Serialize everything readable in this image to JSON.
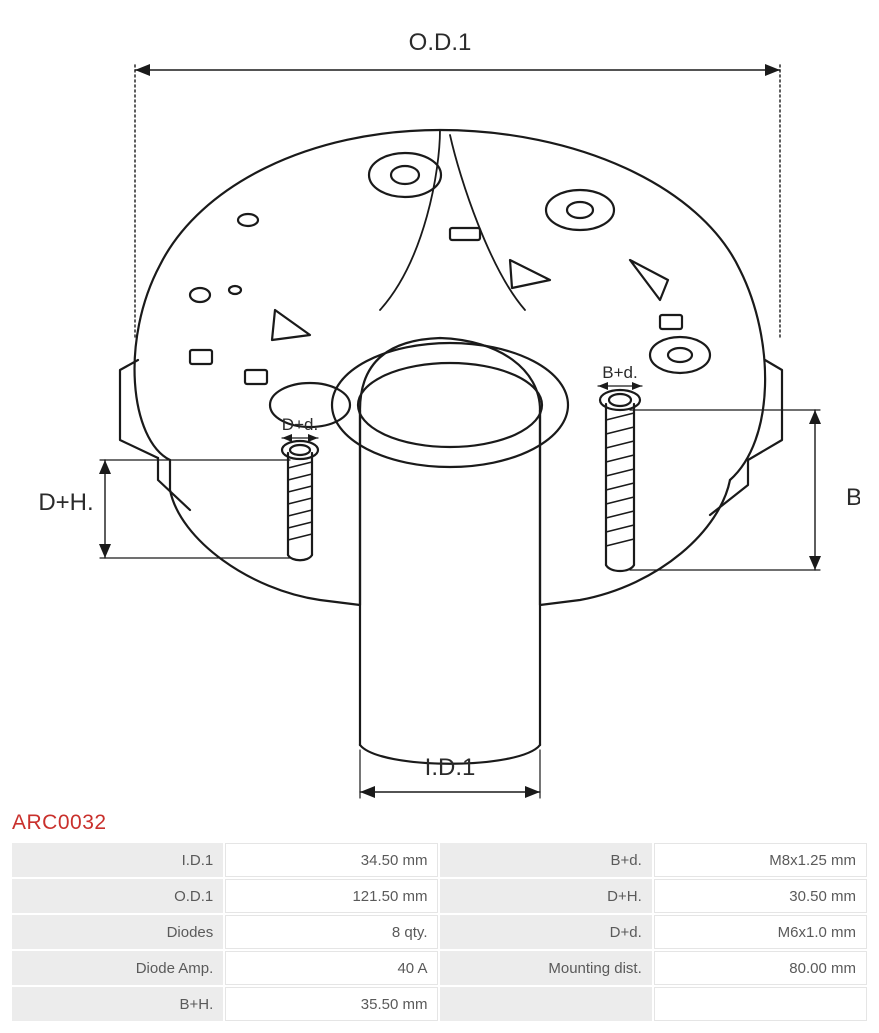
{
  "part_code": "ARC0032",
  "diagram": {
    "type": "engineering-drawing",
    "stroke_color": "#1a1a1a",
    "stroke_width_main": 2.2,
    "stroke_width_thin": 1.4,
    "background": "#ffffff",
    "labels": {
      "od1": "O.D.1",
      "id1": "I.D.1",
      "bd": "B+d.",
      "bh": "B+H.",
      "dd": "D+d.",
      "dh": "D+H."
    },
    "label_font_size": 24,
    "label_font_size_small": 17,
    "label_color": "#2b2b2b"
  },
  "spec_table": {
    "header_bg": "#ececec",
    "cell_border": "#e5e5e5",
    "text_color": "#5a5a5a",
    "font_size": 15,
    "rows": [
      {
        "k1": "I.D.1",
        "v1": "34.50 mm",
        "k2": "B+d.",
        "v2": "M8x1.25 mm"
      },
      {
        "k1": "O.D.1",
        "v1": "121.50 mm",
        "k2": "D+H.",
        "v2": "30.50 mm"
      },
      {
        "k1": "Diodes",
        "v1": "8 qty.",
        "k2": "D+d.",
        "v2": "M6x1.0 mm"
      },
      {
        "k1": "Diode Amp.",
        "v1": "40 A",
        "k2": "Mounting dist.",
        "v2": "80.00 mm"
      },
      {
        "k1": "B+H.",
        "v1": "35.50 mm",
        "k2": "",
        "v2": ""
      }
    ]
  }
}
